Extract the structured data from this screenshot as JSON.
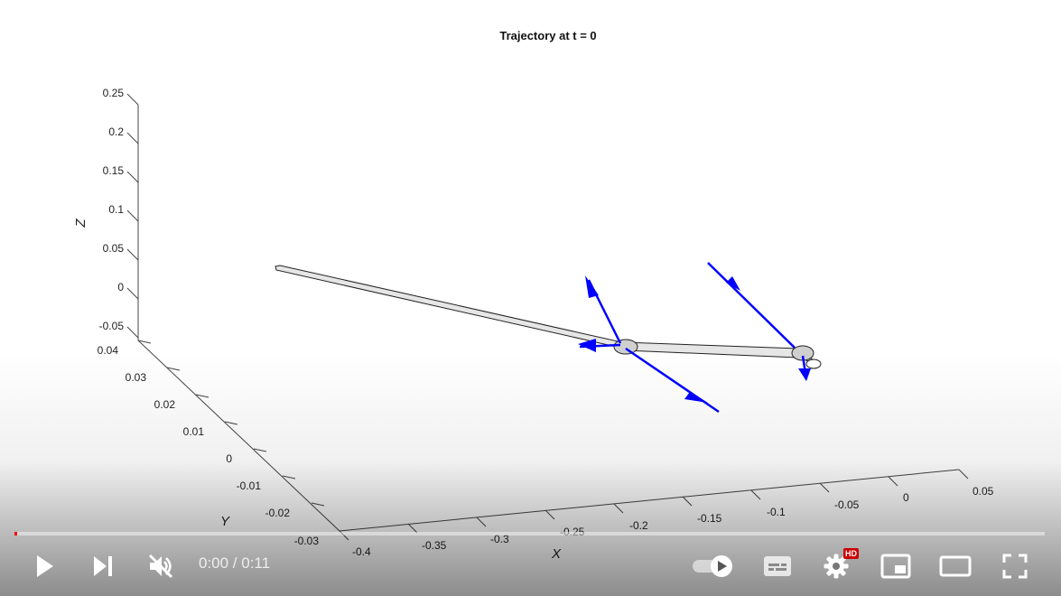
{
  "plot": {
    "title": "Trajectory at t = 0",
    "xlabel": "X",
    "ylabel": "Y",
    "zlabel": "Z",
    "x_ticks": [
      "-0.4",
      "-0.35",
      "-0.3",
      "-0.25",
      "-0.2",
      "-0.15",
      "-0.1",
      "-0.05",
      "0",
      "0.05"
    ],
    "y_ticks": [
      "0.04",
      "0.03",
      "0.02",
      "0.01",
      "0",
      "-0.01",
      "-0.02",
      "-0.03"
    ],
    "z_ticks": [
      "0.25",
      "0.2",
      "0.15",
      "0.1",
      "0.05",
      "0",
      "-0.05"
    ],
    "link_color": "#000000",
    "arrow_color": "#0000ff"
  },
  "player": {
    "time_display": "0:00 / 0:11",
    "progress_fraction": 0,
    "progress_color": "#ff0000",
    "hd_badge": "HD",
    "controls": {
      "play": "play-icon",
      "next": "next-icon",
      "mute": "volume-muted-icon",
      "autoplay": "autoplay-toggle-icon",
      "captions": "captions-icon",
      "settings": "gear-icon",
      "miniplayer": "miniplayer-icon",
      "theater": "theater-mode-icon",
      "fullscreen": "fullscreen-icon"
    }
  }
}
